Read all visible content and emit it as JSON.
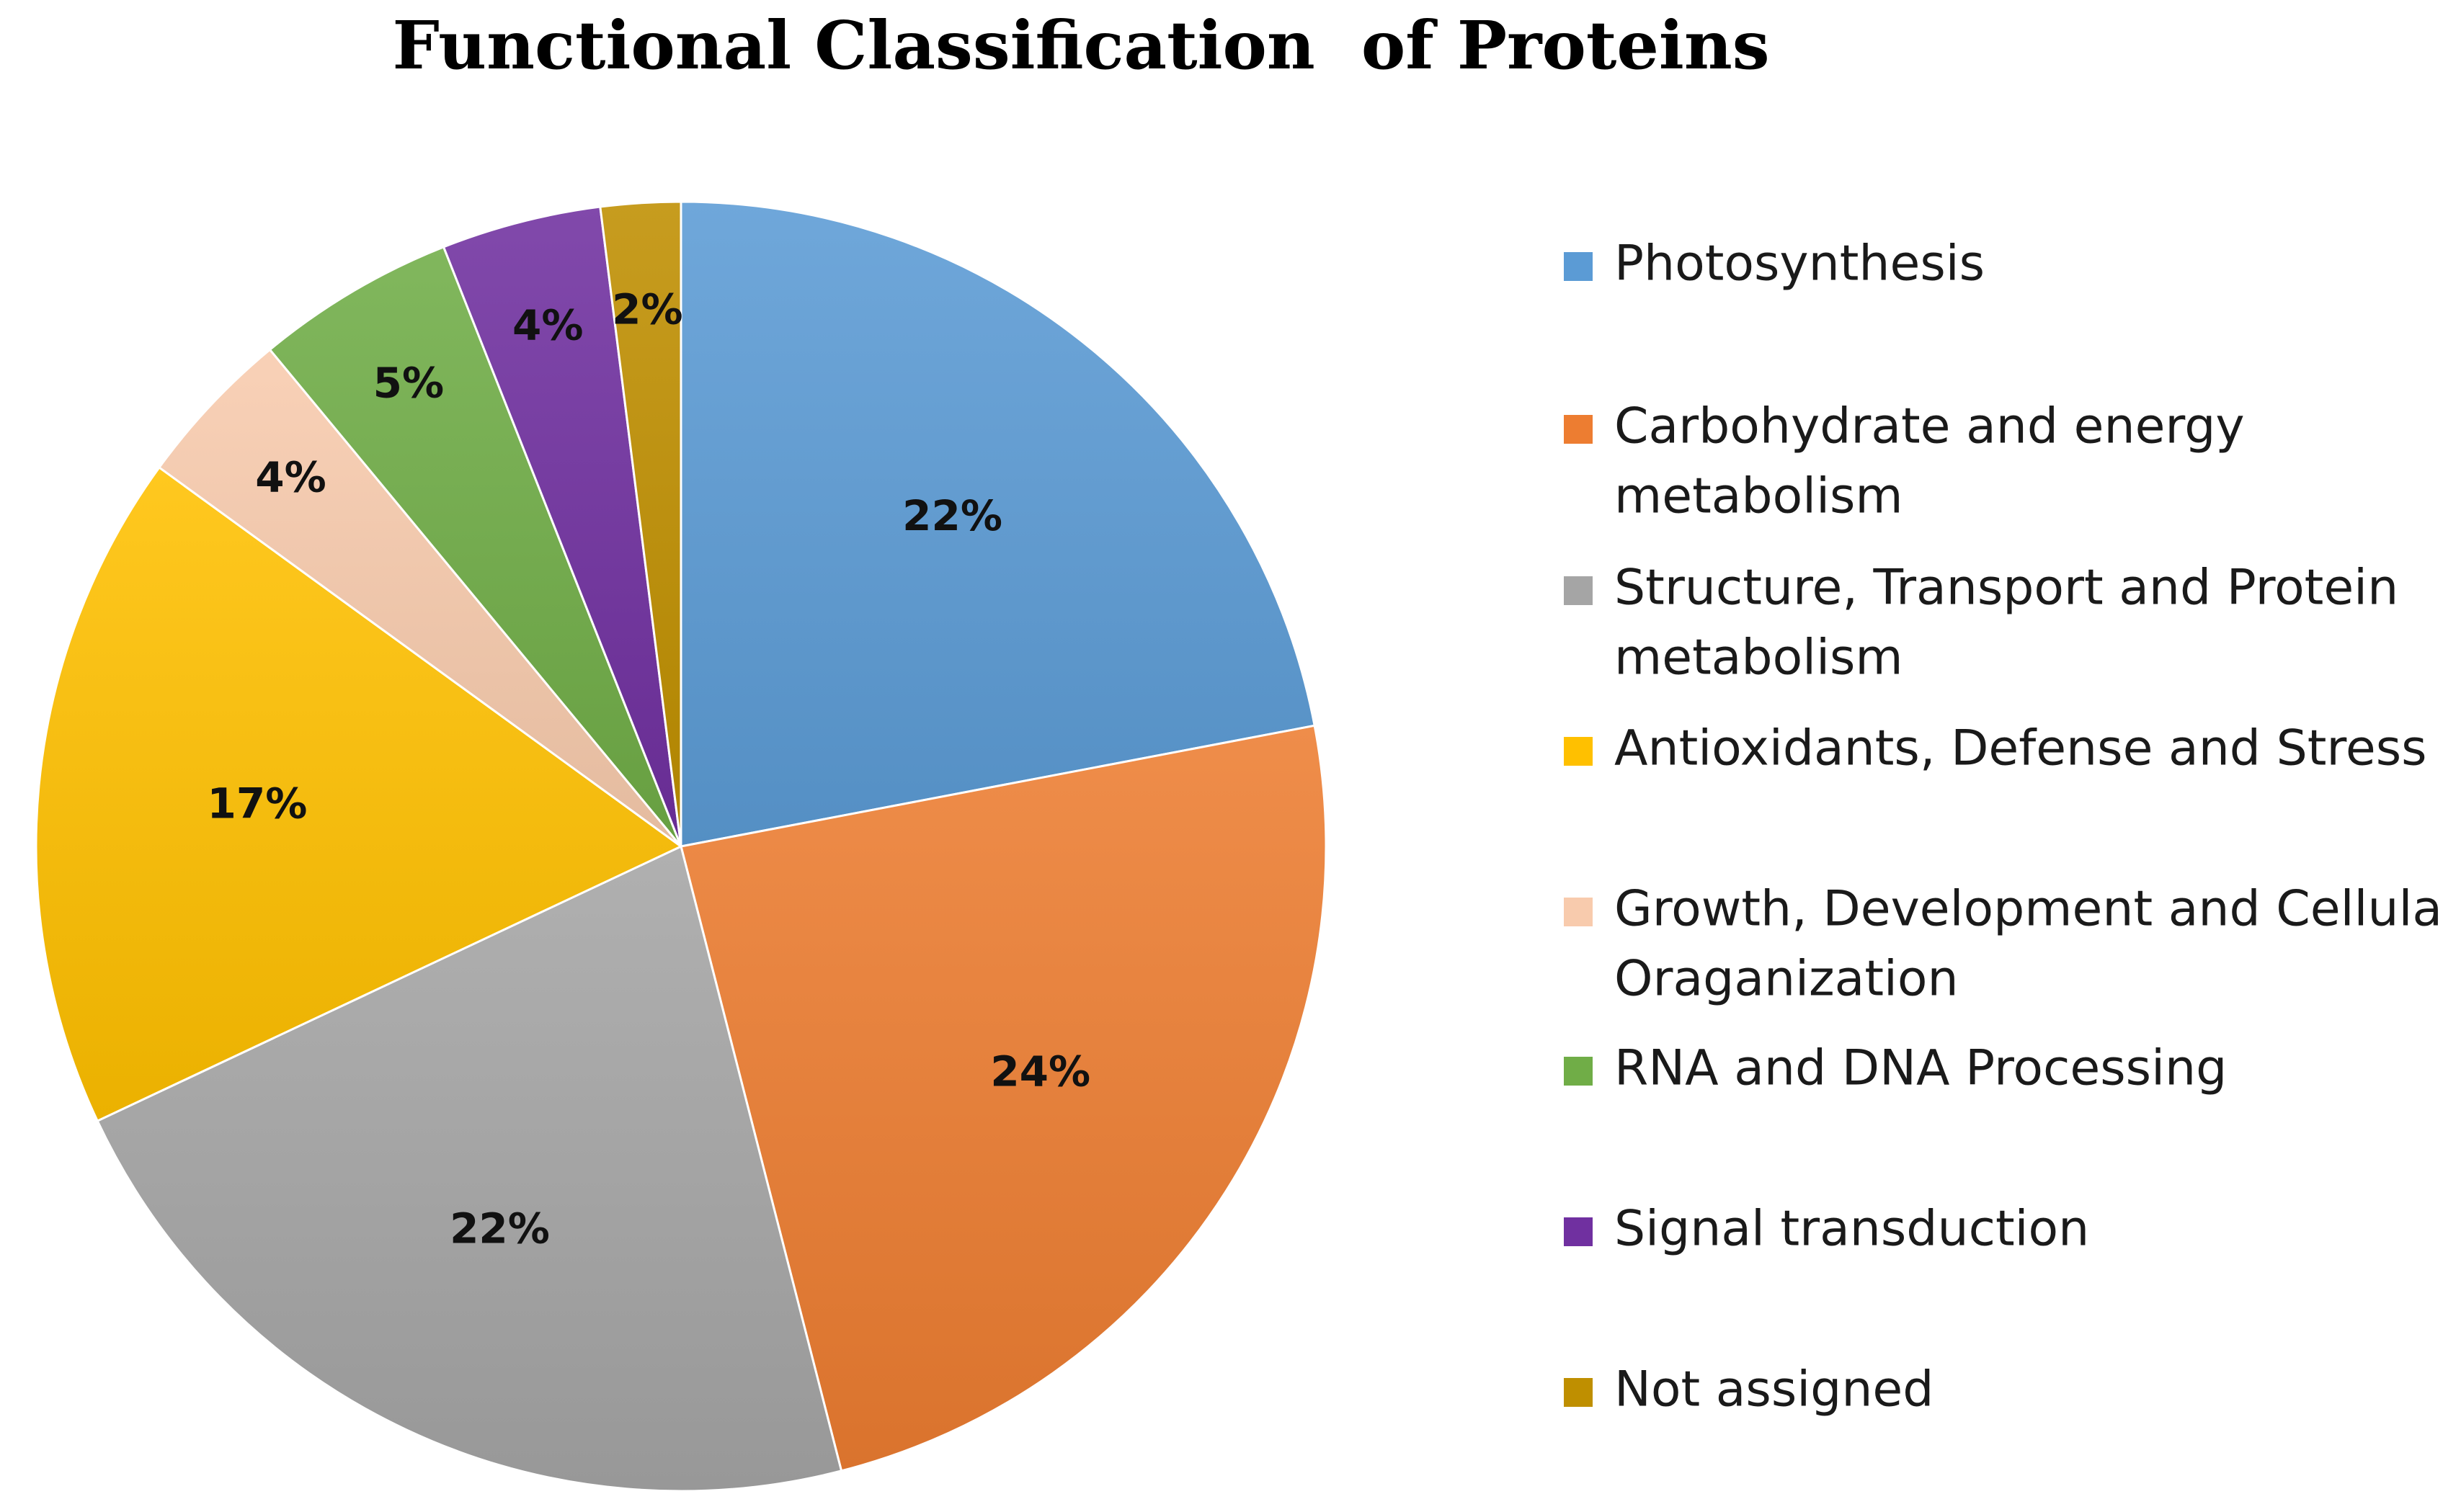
{
  "chart_data": {
    "type": "pie",
    "title": "Functional Classification  of Proteins",
    "categories": [
      "Photosynthesis",
      "Carbohydrate and energy metabolism",
      "Structure, Transport and Protein metabolism",
      "Antioxidants, Defense and Stress",
      "Growth, Development and Cellular Oraganization",
      "RNA and DNA Processing",
      "Signal transduction",
      "Not assigned"
    ],
    "values": [
      22,
      24,
      22,
      17,
      4,
      5,
      4,
      2
    ],
    "data_labels": [
      "22%",
      "24%",
      "22%",
      "17%",
      "4%",
      "5%",
      "4%",
      "2%"
    ],
    "colors": [
      "#5B9BD5",
      "#ED7D31",
      "#A5A5A5",
      "#FFC000",
      "#F8CBAD",
      "#70AD47",
      "#7030A0",
      "#BF8F00"
    ],
    "legend": {
      "position": "right",
      "entries": [
        [
          "Photosynthesis"
        ],
        [
          "Carbohydrate and energy",
          "metabolism"
        ],
        [
          "Structure, Transport and Protein",
          "metabolism"
        ],
        [
          "Antioxidants, Defense and Stress"
        ],
        [
          "Growth, Development and Cellular",
          "Oraganization"
        ],
        [
          "RNA and DNA Processing"
        ],
        [
          "Signal transduction"
        ],
        [
          "Not assigned"
        ]
      ]
    }
  }
}
